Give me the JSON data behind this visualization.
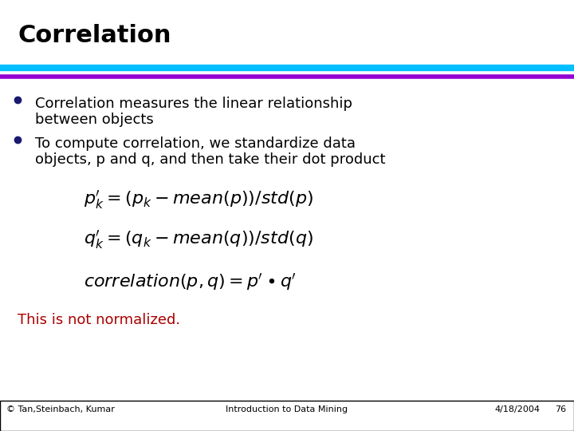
{
  "title": "Correlation",
  "title_color": "#000000",
  "title_fontsize": 22,
  "bg_color": "#ffffff",
  "bar1_color": "#00BFFF",
  "bar2_color": "#9400D3",
  "bullet_color": "#191970",
  "bullet1_line1": "Correlation measures the linear relationship",
  "bullet1_line2": "between objects",
  "bullet2_line1": "To compute correlation, we standardize data",
  "bullet2_line2": "objects, p and q, and then take their dot product",
  "note": "This is not normalized.",
  "note_color": "#AA0000",
  "footer_left": "© Tan,Steinbach, Kumar",
  "footer_center": "Introduction to Data Mining",
  "footer_right": "4/18/2004",
  "footer_page": "76",
  "footer_color": "#000000",
  "footer_fontsize": 8,
  "bullet_fontsize": 13,
  "formula_fontsize": 16,
  "note_fontsize": 13
}
